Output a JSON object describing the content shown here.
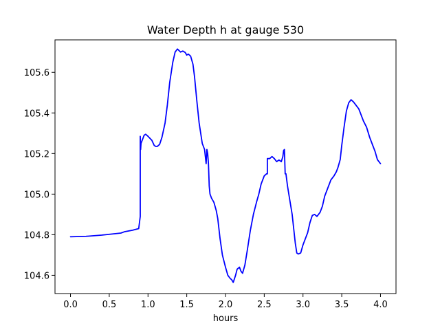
{
  "chart_data": {
    "type": "line",
    "title": "Water Depth h at gauge 530",
    "xlabel": "hours",
    "ylabel": "",
    "xlim": [
      -0.2,
      4.2
    ],
    "ylim": [
      104.51,
      105.76
    ],
    "xticks": [
      0.0,
      0.5,
      1.0,
      1.5,
      2.0,
      2.5,
      3.0,
      3.5,
      4.0
    ],
    "xtick_labels": [
      "0.0",
      "0.5",
      "1.0",
      "1.5",
      "2.0",
      "2.5",
      "3.0",
      "3.5",
      "4.0"
    ],
    "yticks": [
      104.6,
      104.8,
      105.0,
      105.2,
      105.4,
      105.6
    ],
    "ytick_labels": [
      "104.6",
      "104.8",
      "105.0",
      "105.2",
      "105.4",
      "105.6"
    ],
    "grid": false,
    "series": [
      {
        "color": "#0000ff",
        "x": [
          0.0,
          0.2,
          0.4,
          0.6,
          0.65,
          0.7,
          0.8,
          0.88,
          0.9,
          0.9,
          0.905,
          0.91,
          0.93,
          0.95,
          0.97,
          1.0,
          1.05,
          1.08,
          1.1,
          1.12,
          1.15,
          1.18,
          1.22,
          1.25,
          1.28,
          1.32,
          1.35,
          1.38,
          1.42,
          1.45,
          1.48,
          1.5,
          1.52,
          1.55,
          1.58,
          1.6,
          1.63,
          1.66,
          1.7,
          1.73,
          1.75,
          1.76,
          1.77,
          1.78,
          1.79,
          1.8,
          1.82,
          1.85,
          1.88,
          1.9,
          1.93,
          1.96,
          2.0,
          2.03,
          2.06,
          2.08,
          2.1,
          2.13,
          2.15,
          2.18,
          2.2,
          2.22,
          2.25,
          2.28,
          2.32,
          2.36,
          2.4,
          2.43,
          2.46,
          2.5,
          2.53,
          2.54,
          2.54,
          2.57,
          2.6,
          2.63,
          2.66,
          2.69,
          2.72,
          2.74,
          2.75,
          2.76,
          2.77,
          2.78,
          2.8,
          2.83,
          2.86,
          2.88,
          2.9,
          2.92,
          2.94,
          2.97,
          3.0,
          3.03,
          3.06,
          3.09,
          3.12,
          3.15,
          3.18,
          3.22,
          3.25,
          3.28,
          3.32,
          3.36,
          3.4,
          3.43,
          3.45,
          3.48,
          3.5,
          3.53,
          3.56,
          3.59,
          3.62,
          3.65,
          3.68,
          3.7,
          3.72,
          3.75,
          3.78,
          3.82,
          3.86,
          3.9,
          3.93,
          3.96,
          4.0
        ],
        "y": [
          104.79,
          104.792,
          104.798,
          104.806,
          104.808,
          104.815,
          104.822,
          104.83,
          104.89,
          105.285,
          105.22,
          105.25,
          105.27,
          105.29,
          105.295,
          105.285,
          105.265,
          105.24,
          105.235,
          105.235,
          105.245,
          105.28,
          105.35,
          105.44,
          105.55,
          105.65,
          105.7,
          105.715,
          105.7,
          105.705,
          105.698,
          105.685,
          105.69,
          105.68,
          105.64,
          105.58,
          105.46,
          105.35,
          105.25,
          105.22,
          105.15,
          105.22,
          105.2,
          105.15,
          105.04,
          105.0,
          104.98,
          104.96,
          104.92,
          104.88,
          104.78,
          104.7,
          104.64,
          104.6,
          104.585,
          104.578,
          104.565,
          104.6,
          104.63,
          104.64,
          104.62,
          104.61,
          104.65,
          104.72,
          104.82,
          104.9,
          104.96,
          105.0,
          105.05,
          105.09,
          105.1,
          105.1,
          105.175,
          105.175,
          105.185,
          105.175,
          105.16,
          105.168,
          105.16,
          105.185,
          105.215,
          105.22,
          105.1,
          105.1,
          105.04,
          104.97,
          104.9,
          104.83,
          104.76,
          104.71,
          104.705,
          104.71,
          104.75,
          104.78,
          104.81,
          104.86,
          104.895,
          104.9,
          104.89,
          104.91,
          104.94,
          104.99,
          105.03,
          105.07,
          105.09,
          105.11,
          105.13,
          105.17,
          105.24,
          105.33,
          105.41,
          105.45,
          105.465,
          105.455,
          105.44,
          105.43,
          105.42,
          105.39,
          105.36,
          105.33,
          105.28,
          105.24,
          105.21,
          105.17,
          105.15
        ]
      }
    ]
  }
}
